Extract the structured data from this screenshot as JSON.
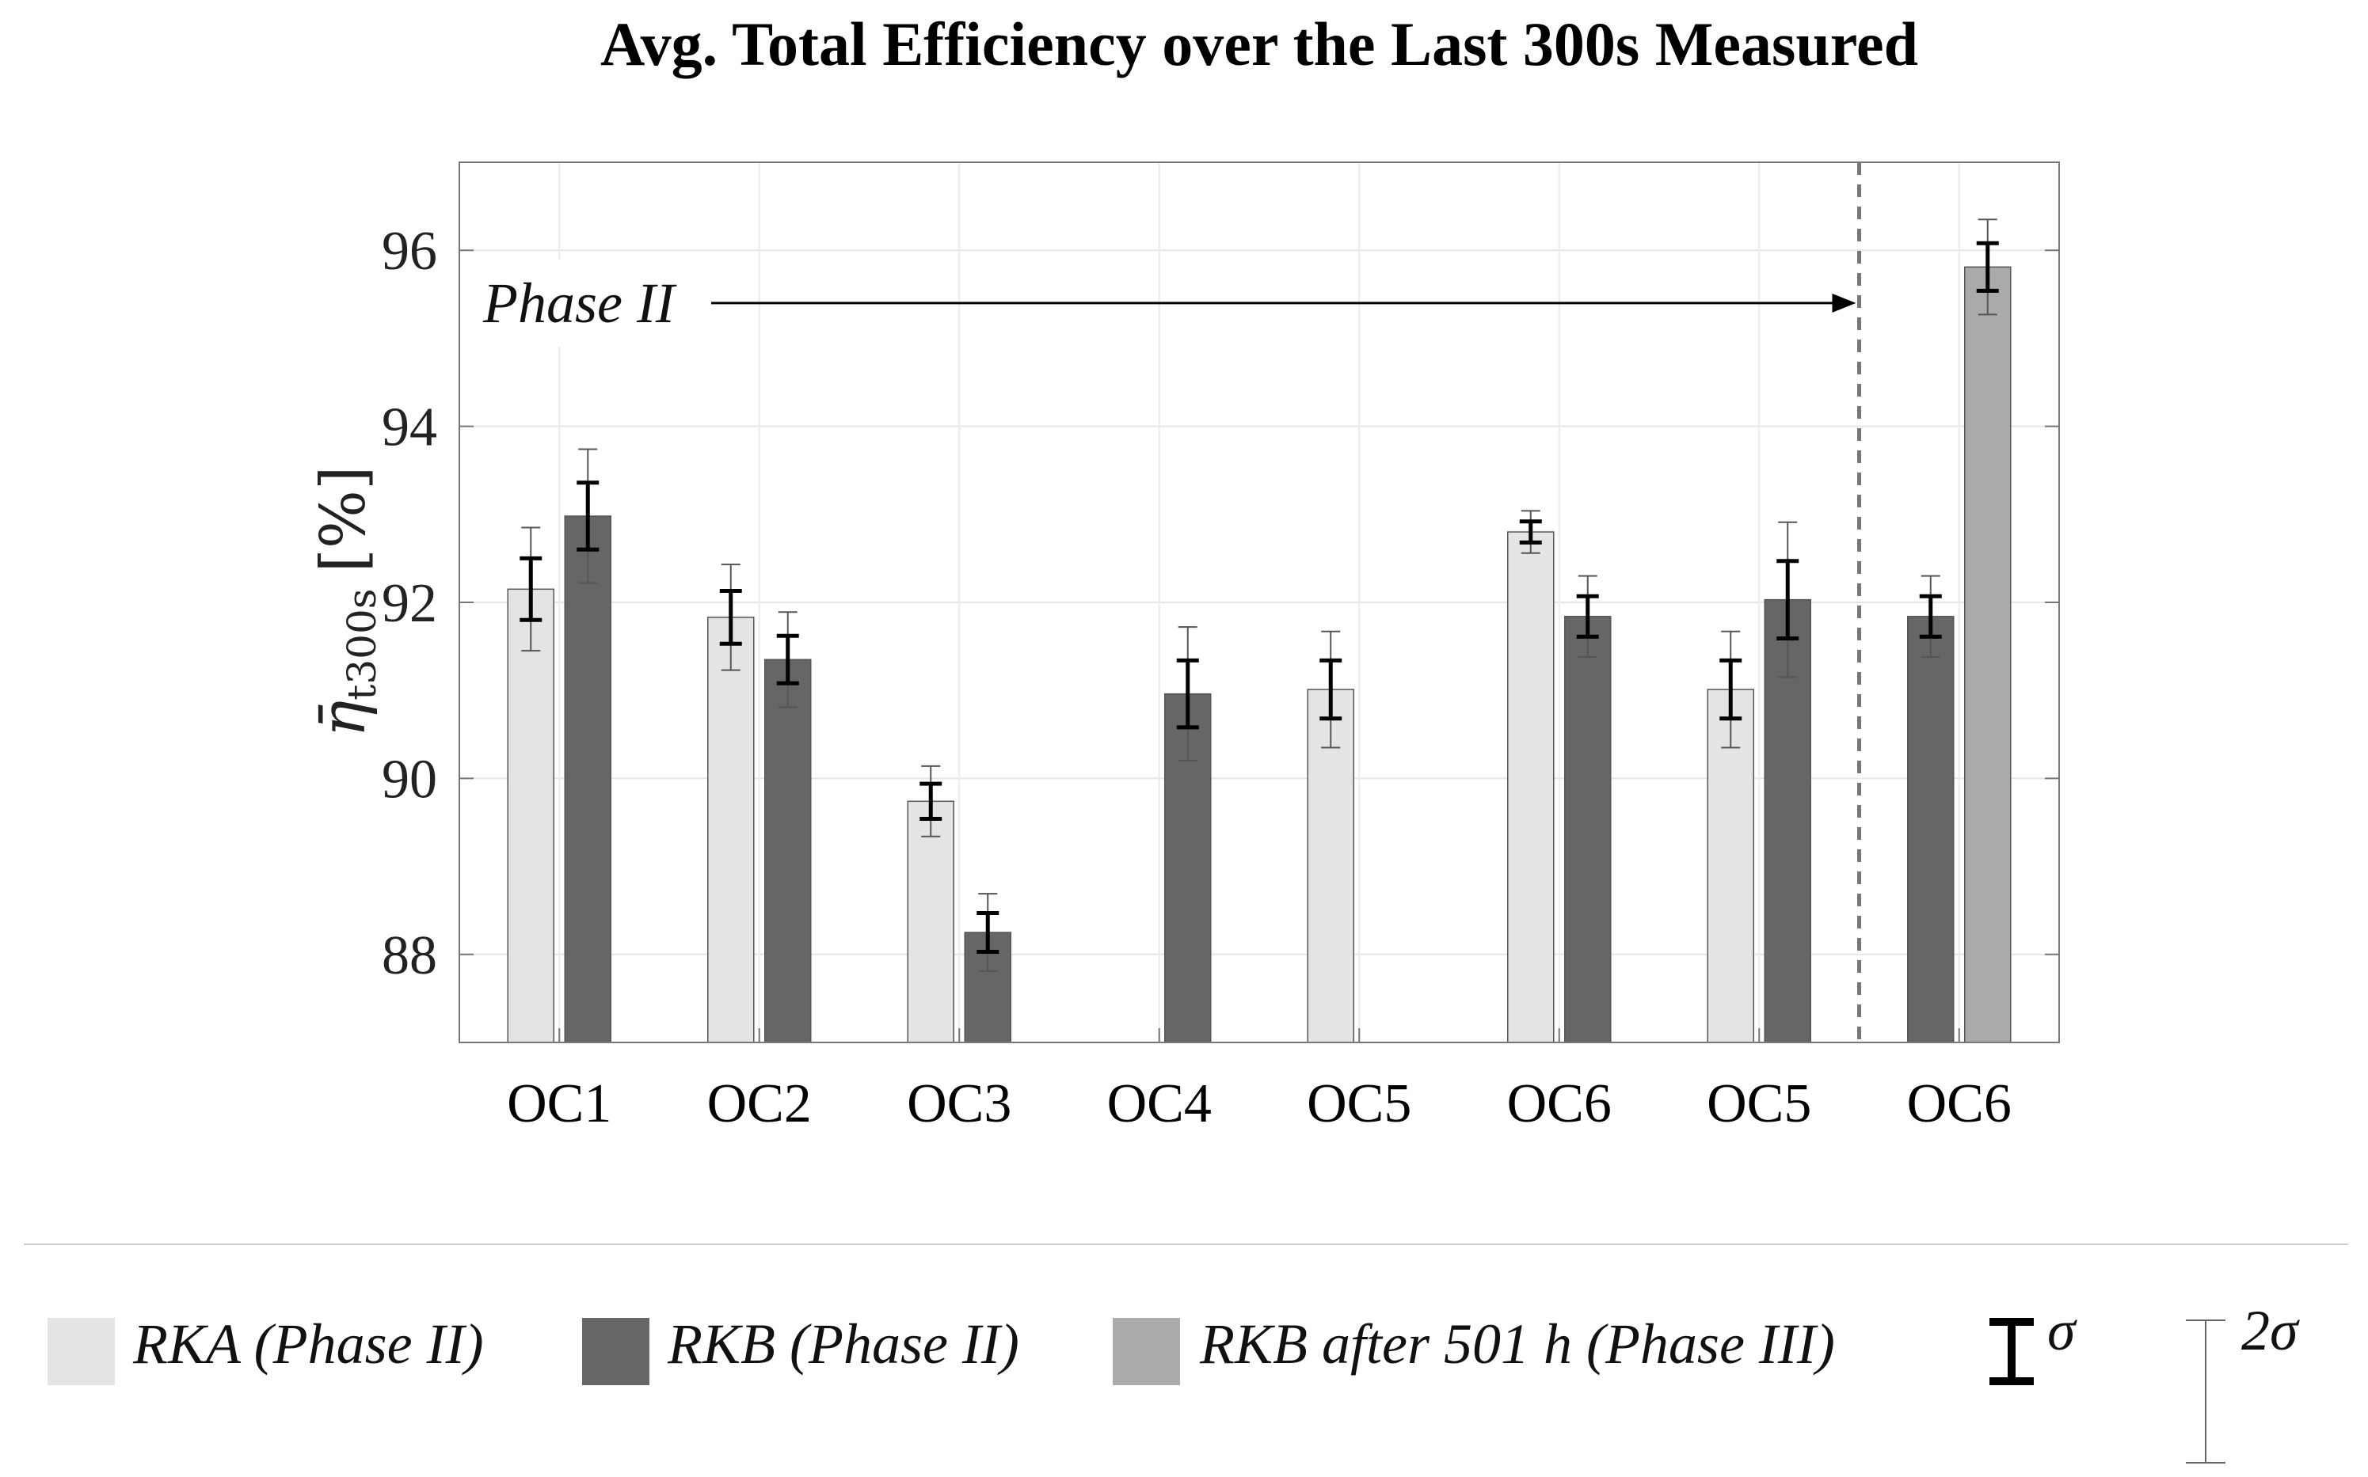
{
  "chart_data": {
    "type": "bar",
    "title": "Avg. Total Efficiency over the Last 300s Measured",
    "ylabel": "η̄t300s [%]",
    "ylabel_main": "η̄",
    "ylabel_sub": "t300s",
    "ylabel_unit": "[%]",
    "xlabel": "",
    "ylim": [
      87,
      97
    ],
    "yticks": [
      88,
      90,
      92,
      94,
      96
    ],
    "grid": true,
    "categories": [
      "OC1",
      "OC2",
      "OC3",
      "OC4",
      "OC5",
      "OC6",
      "OC5",
      "OC6"
    ],
    "series": [
      {
        "name": "RKA (Phase II)",
        "color": "#e4e4e4",
        "values": [
          92.15,
          91.83,
          89.74,
          null,
          91.01,
          92.8,
          91.01,
          null
        ],
        "sigma": [
          0.35,
          0.3,
          0.2,
          null,
          0.33,
          0.12,
          0.33,
          null
        ]
      },
      {
        "name": "RKB (Phase II)",
        "color": "#666666",
        "values": [
          92.98,
          91.35,
          88.25,
          90.96,
          null,
          91.84,
          92.03,
          91.84
        ],
        "sigma": [
          0.38,
          0.27,
          0.22,
          0.38,
          null,
          0.23,
          0.44,
          0.23
        ]
      },
      {
        "name": "RKB after 501 h (Phase III)",
        "color": "#aaaaaa",
        "values": [
          null,
          null,
          null,
          null,
          null,
          null,
          null,
          95.81
        ],
        "sigma": [
          null,
          null,
          null,
          null,
          null,
          null,
          null,
          0.27
        ]
      }
    ],
    "annotations": [
      {
        "text": "Phase II",
        "type": "arrow",
        "from_category": 0,
        "to_boundary": 6.5
      }
    ],
    "phase_divider_after_index": 6,
    "legend": {
      "placement": "bottom",
      "entries": [
        "RKA (Phase II)",
        "RKB (Phase II)",
        "RKB after 501 h (Phase III)"
      ],
      "error_bar_entries": [
        {
          "label": "σ",
          "style": "thick"
        },
        {
          "label": "2σ",
          "style": "thin"
        }
      ]
    }
  }
}
